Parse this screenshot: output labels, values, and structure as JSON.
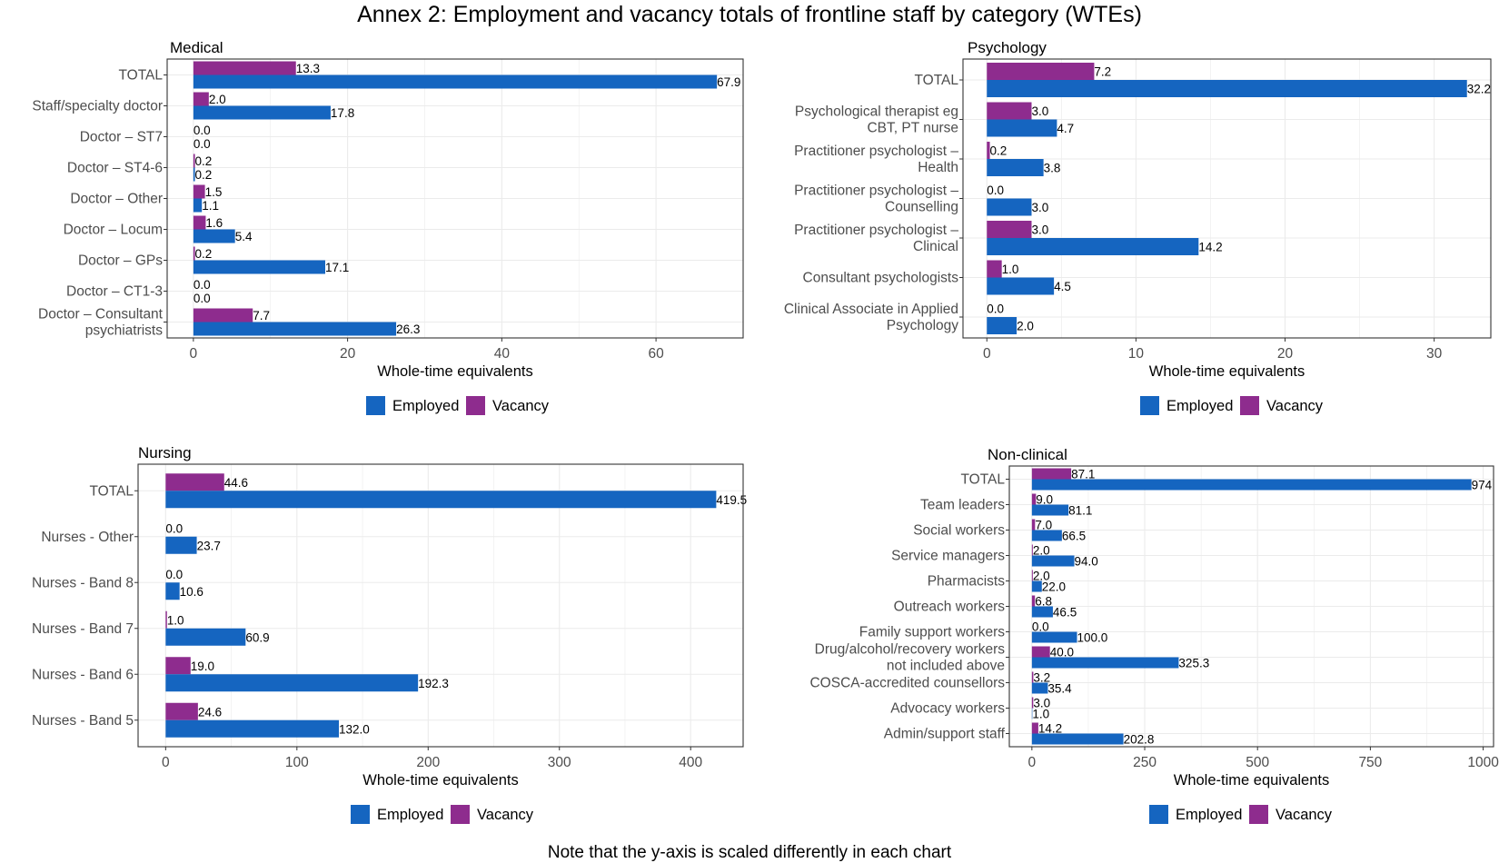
{
  "title": "Annex 2: Employment and vacancy totals of frontline staff by category (WTEs)",
  "note": "Note that the y-axis is scaled differently in each chart",
  "colors": {
    "employed": "#1565C0",
    "vacancy": "#8E2C8E",
    "panel_border": "#333333",
    "gridline": "#EBEBEB",
    "axis_text": "#4D4D4D"
  },
  "chart_data": [
    {
      "type": "bar",
      "orientation": "horizontal",
      "title": "Medical",
      "xlabel": "Whole-time equivalents",
      "xticks": [
        0,
        20,
        40,
        60
      ],
      "xlim": [
        -3.4,
        71.3
      ],
      "grid": true,
      "legend_position": "bottom",
      "categories": [
        [
          "TOTAL"
        ],
        [
          "Staff/specialty doctor"
        ],
        [
          "Doctor – ST7"
        ],
        [
          "Doctor – ST4-6"
        ],
        [
          "Doctor – Other"
        ],
        [
          "Doctor – Locum"
        ],
        [
          "Doctor – GPs"
        ],
        [
          "Doctor – CT1-3"
        ],
        [
          "Doctor – Consultant",
          "psychiatrists"
        ]
      ],
      "series": [
        {
          "name": "Employed",
          "values": [
            67.9,
            17.8,
            0.0,
            0.2,
            1.1,
            5.4,
            17.1,
            0.0,
            26.3
          ],
          "labels": [
            "67.9",
            "17.8",
            "0.0",
            "0.2",
            "1.1",
            "5.4",
            "17.1",
            "0.0",
            "26.3"
          ]
        },
        {
          "name": "Vacancy",
          "values": [
            13.3,
            2.0,
            0.0,
            0.2,
            1.5,
            1.6,
            0.2,
            0.0,
            7.7
          ],
          "labels": [
            "13.3",
            "2.0",
            "0.0",
            "0.2",
            "1.5",
            "1.6",
            "0.2",
            "0.0",
            "7.7"
          ]
        }
      ]
    },
    {
      "type": "bar",
      "orientation": "horizontal",
      "title": "Psychology",
      "xlabel": "Whole-time equivalents",
      "xticks": [
        0,
        10,
        20,
        30
      ],
      "xlim": [
        -1.6,
        33.8
      ],
      "grid": true,
      "legend_position": "bottom",
      "categories": [
        [
          "TOTAL"
        ],
        [
          "Psychological therapist eg",
          "CBT, PT nurse"
        ],
        [
          "Practitioner psychologist –",
          "Health"
        ],
        [
          "Practitioner psychologist –",
          "Counselling"
        ],
        [
          "Practitioner psychologist –",
          "Clinical"
        ],
        [
          "Consultant psychologists"
        ],
        [
          "Clinical Associate in Applied",
          "Psychology"
        ]
      ],
      "series": [
        {
          "name": "Employed",
          "values": [
            32.2,
            4.7,
            3.8,
            3.0,
            14.2,
            4.5,
            2.0
          ],
          "labels": [
            "32.2",
            "4.7",
            "3.8",
            "3.0",
            "14.2",
            "4.5",
            "2.0"
          ]
        },
        {
          "name": "Vacancy",
          "values": [
            7.2,
            3.0,
            0.2,
            0.0,
            3.0,
            1.0,
            0.0
          ],
          "labels": [
            "7.2",
            "3.0",
            "0.2",
            "0.0",
            "3.0",
            "1.0",
            "0.0"
          ]
        }
      ]
    },
    {
      "type": "bar",
      "orientation": "horizontal",
      "title": "Nursing",
      "xlabel": "Whole-time equivalents",
      "xticks": [
        0,
        100,
        200,
        300,
        400
      ],
      "xlim": [
        -21,
        440
      ],
      "grid": true,
      "legend_position": "bottom",
      "categories": [
        [
          "TOTAL"
        ],
        [
          "Nurses - Other"
        ],
        [
          "Nurses - Band 8"
        ],
        [
          "Nurses - Band 7"
        ],
        [
          "Nurses - Band 6"
        ],
        [
          "Nurses - Band 5"
        ]
      ],
      "series": [
        {
          "name": "Employed",
          "values": [
            419.5,
            23.7,
            10.6,
            60.9,
            192.3,
            132.0
          ],
          "labels": [
            "419.5",
            "23.7",
            "10.6",
            "60.9",
            "192.3",
            "132.0"
          ]
        },
        {
          "name": "Vacancy",
          "values": [
            44.6,
            0.0,
            0.0,
            1.0,
            19.0,
            24.6
          ],
          "labels": [
            "44.6",
            "0.0",
            "0.0",
            "1.0",
            "19.0",
            "24.6"
          ]
        }
      ]
    },
    {
      "type": "bar",
      "orientation": "horizontal",
      "title": "Non-clinical",
      "xlabel": "Whole-time equivalents",
      "xticks": [
        0,
        250,
        500,
        750,
        1000
      ],
      "xlim": [
        -50,
        1023
      ],
      "grid": true,
      "legend_position": "bottom",
      "categories": [
        [
          "TOTAL"
        ],
        [
          "Team leaders"
        ],
        [
          "Social workers"
        ],
        [
          "Service managers"
        ],
        [
          "Pharmacists"
        ],
        [
          "Outreach workers"
        ],
        [
          "Family support workers"
        ],
        [
          "Drug/alcohol/recovery workers",
          "not included above"
        ],
        [
          "COSCA-accredited counsellors"
        ],
        [
          "Advocacy workers"
        ],
        [
          "Admin/support staff"
        ]
      ],
      "series": [
        {
          "name": "Employed",
          "values": [
            974,
            81.1,
            66.5,
            94.0,
            22.0,
            46.5,
            100.0,
            325.3,
            35.4,
            1.0,
            202.8
          ],
          "labels": [
            "974",
            "81.1",
            "66.5",
            "94.0",
            "22.0",
            "46.5",
            "100.0",
            "325.3",
            "35.4",
            "1.0",
            "202.8"
          ]
        },
        {
          "name": "Vacancy",
          "values": [
            87.1,
            9.0,
            7.0,
            2.0,
            2.0,
            6.8,
            0.0,
            40.0,
            3.2,
            3.0,
            14.2
          ],
          "labels": [
            "87.1",
            "9.0",
            "7.0",
            "2.0",
            "2.0",
            "6.8",
            "0.0",
            "40.0",
            "3.2",
            "3.0",
            "14.2"
          ]
        }
      ]
    }
  ]
}
